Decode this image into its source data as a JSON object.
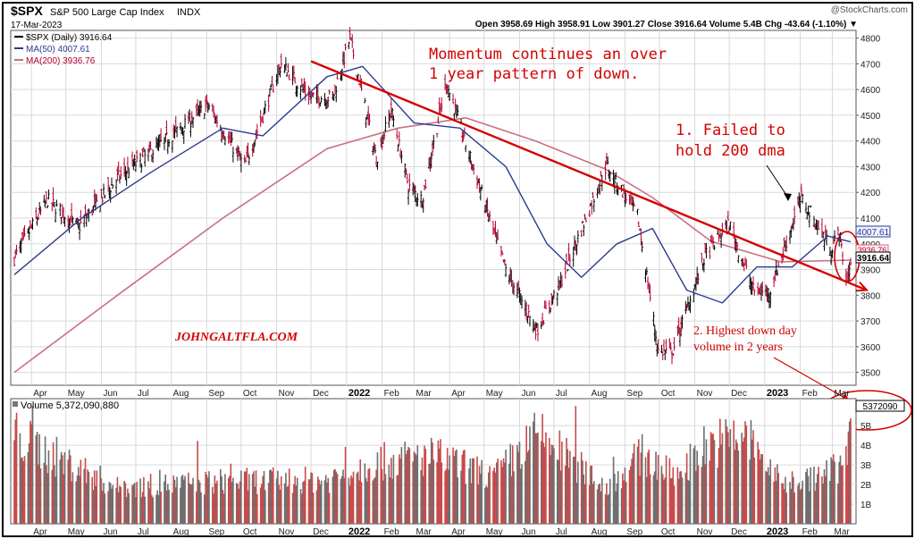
{
  "header": {
    "symbol": "$SPX",
    "name": "S&P 500 Large Cap Index",
    "exchange": "INDX",
    "date": "17-Mar-2023",
    "watermark": "@StockCharts.com",
    "ohlc_line": "Open 3958.69  High 3958.91  Low 3901.27  Close 3916.64  Volume 5.4B  Chg -43.64 (-1.10%) ▼"
  },
  "legend": {
    "price": "$SPX (Daily) 3916.64",
    "ma50": "MA(50) 4007.61",
    "ma200": "MA(200) 3936.76",
    "volume": "Volume 5,372,090,880"
  },
  "annotations": {
    "momentum_line1": "Momentum continues an over",
    "momentum_line2": "1 year pattern of down.",
    "failed_line1": "1. Failed to",
    "failed_line2": "hold 200 dma",
    "highest_line1": "2. Highest down day",
    "highest_line2": "volume in 2 years",
    "site": "JOHNGALTFLA.COM"
  },
  "price_tags": {
    "ma50": "4007.61",
    "ma200": "3936.76",
    "close": "3916.64",
    "volume": "5372090"
  },
  "colors": {
    "up": "#000000",
    "down": "#b3002d",
    "ma50": "#2b3a8f",
    "ma200": "#c97080",
    "annotation": "#d40000",
    "grid": "#d9d9d9",
    "vol_up": "#6e6e6e",
    "vol_down": "#c84a4a"
  },
  "chart_data": {
    "type": "line",
    "title": "$SPX S&P 500 Large Cap Index INDX",
    "ylim": [
      3450,
      4830
    ],
    "y_ticks": [
      3500,
      3600,
      3700,
      3800,
      3900,
      4000,
      4100,
      4200,
      4300,
      4400,
      4500,
      4600,
      4700,
      4800
    ],
    "x_labels": [
      "Apr",
      "May",
      "Jun",
      "Jul",
      "Aug",
      "Sep",
      "Oct",
      "Nov",
      "Dec",
      "2022",
      "Feb",
      "Mar",
      "Apr",
      "May",
      "Jun",
      "Jul",
      "Aug",
      "Sep",
      "Oct",
      "Nov",
      "Dec",
      "2023",
      "Feb",
      "Mar"
    ],
    "x_label_dates": [
      "2021-04-01",
      "2021-05-01",
      "2021-06-01",
      "2021-07-01",
      "2021-08-01",
      "2021-09-01",
      "2021-10-01",
      "2021-11-01",
      "2021-12-01",
      "2022-01-01",
      "2022-02-01",
      "2022-03-01",
      "2022-04-01",
      "2022-05-01",
      "2022-06-01",
      "2022-07-01",
      "2022-08-01",
      "2022-09-01",
      "2022-10-01",
      "2022-11-01",
      "2022-12-01",
      "2023-01-01",
      "2023-02-01",
      "2023-03-01"
    ],
    "x_range": [
      "2021-03-17",
      "2023-03-17"
    ],
    "series": [
      {
        "name": "$SPX (Daily)",
        "x": [
          "2021-03-17",
          "2021-04-15",
          "2021-05-12",
          "2021-06-15",
          "2021-07-15",
          "2021-08-15",
          "2021-09-02",
          "2021-10-04",
          "2021-11-05",
          "2021-11-30",
          "2021-12-20",
          "2022-01-04",
          "2022-01-27",
          "2022-02-09",
          "2022-02-24",
          "2022-03-08",
          "2022-03-29",
          "2022-04-15",
          "2022-05-20",
          "2022-06-16",
          "2022-07-05",
          "2022-08-16",
          "2022-09-12",
          "2022-09-30",
          "2022-10-12",
          "2022-11-10",
          "2022-12-01",
          "2022-12-22",
          "2023-01-05",
          "2023-02-02",
          "2023-02-28",
          "2023-03-07",
          "2023-03-13",
          "2023-03-17"
        ],
        "values": [
          3945,
          4170,
          4065,
          4255,
          4360,
          4470,
          4540,
          4300,
          4700,
          4570,
          4570,
          4800,
          4330,
          4520,
          4225,
          4170,
          4630,
          4390,
          3900,
          3665,
          3830,
          4305,
          4110,
          3585,
          3575,
          3955,
          4080,
          3820,
          3810,
          4180,
          3980,
          4050,
          3855,
          3916.64
        ]
      },
      {
        "name": "MA(50)",
        "x": [
          "2021-03-17",
          "2021-05-15",
          "2021-07-15",
          "2021-09-15",
          "2021-10-20",
          "2021-12-15",
          "2022-01-15",
          "2022-03-01",
          "2022-04-10",
          "2022-05-20",
          "2022-06-25",
          "2022-07-25",
          "2022-08-25",
          "2022-09-25",
          "2022-10-25",
          "2022-11-25",
          "2022-12-25",
          "2023-01-25",
          "2023-02-25",
          "2023-03-17"
        ],
        "values": [
          3880,
          4100,
          4280,
          4450,
          4420,
          4650,
          4690,
          4470,
          4450,
          4300,
          4000,
          3870,
          4000,
          4060,
          3820,
          3770,
          3910,
          3910,
          4030,
          4007.61
        ]
      },
      {
        "name": "MA(200)",
        "x": [
          "2021-03-17",
          "2021-06-15",
          "2021-09-15",
          "2021-12-15",
          "2022-02-15",
          "2022-04-15",
          "2022-06-15",
          "2022-08-15",
          "2022-09-25",
          "2022-11-15",
          "2023-01-15",
          "2023-03-17"
        ],
        "values": [
          3500,
          3800,
          4100,
          4370,
          4450,
          4490,
          4400,
          4290,
          4180,
          4010,
          3930,
          3936.76
        ]
      },
      {
        "name": "Volume",
        "x": [
          "2021-03-17",
          "2021-06-15",
          "2021-09-15",
          "2021-12-15",
          "2022-01-25",
          "2022-03-18",
          "2022-05-10",
          "2022-06-17",
          "2022-08-15",
          "2022-09-16",
          "2022-10-15",
          "2022-11-10",
          "2022-12-16",
          "2023-01-15",
          "2023-02-15",
          "2023-03-10",
          "2023-03-17"
        ],
        "values": [
          5.6,
          2.3,
          2.7,
          2.8,
          3.9,
          4.3,
          3.0,
          5.7,
          2.3,
          4.4,
          3.0,
          5.0,
          5.6,
          2.6,
          2.9,
          3.8,
          5.37
        ]
      }
    ],
    "volume_ticks": [
      "1B",
      "2B",
      "3B",
      "4B",
      "5B"
    ],
    "trendline": {
      "from": [
        "2021-12-01",
        4710
      ],
      "to": [
        "2023-03-31",
        3820
      ]
    }
  }
}
